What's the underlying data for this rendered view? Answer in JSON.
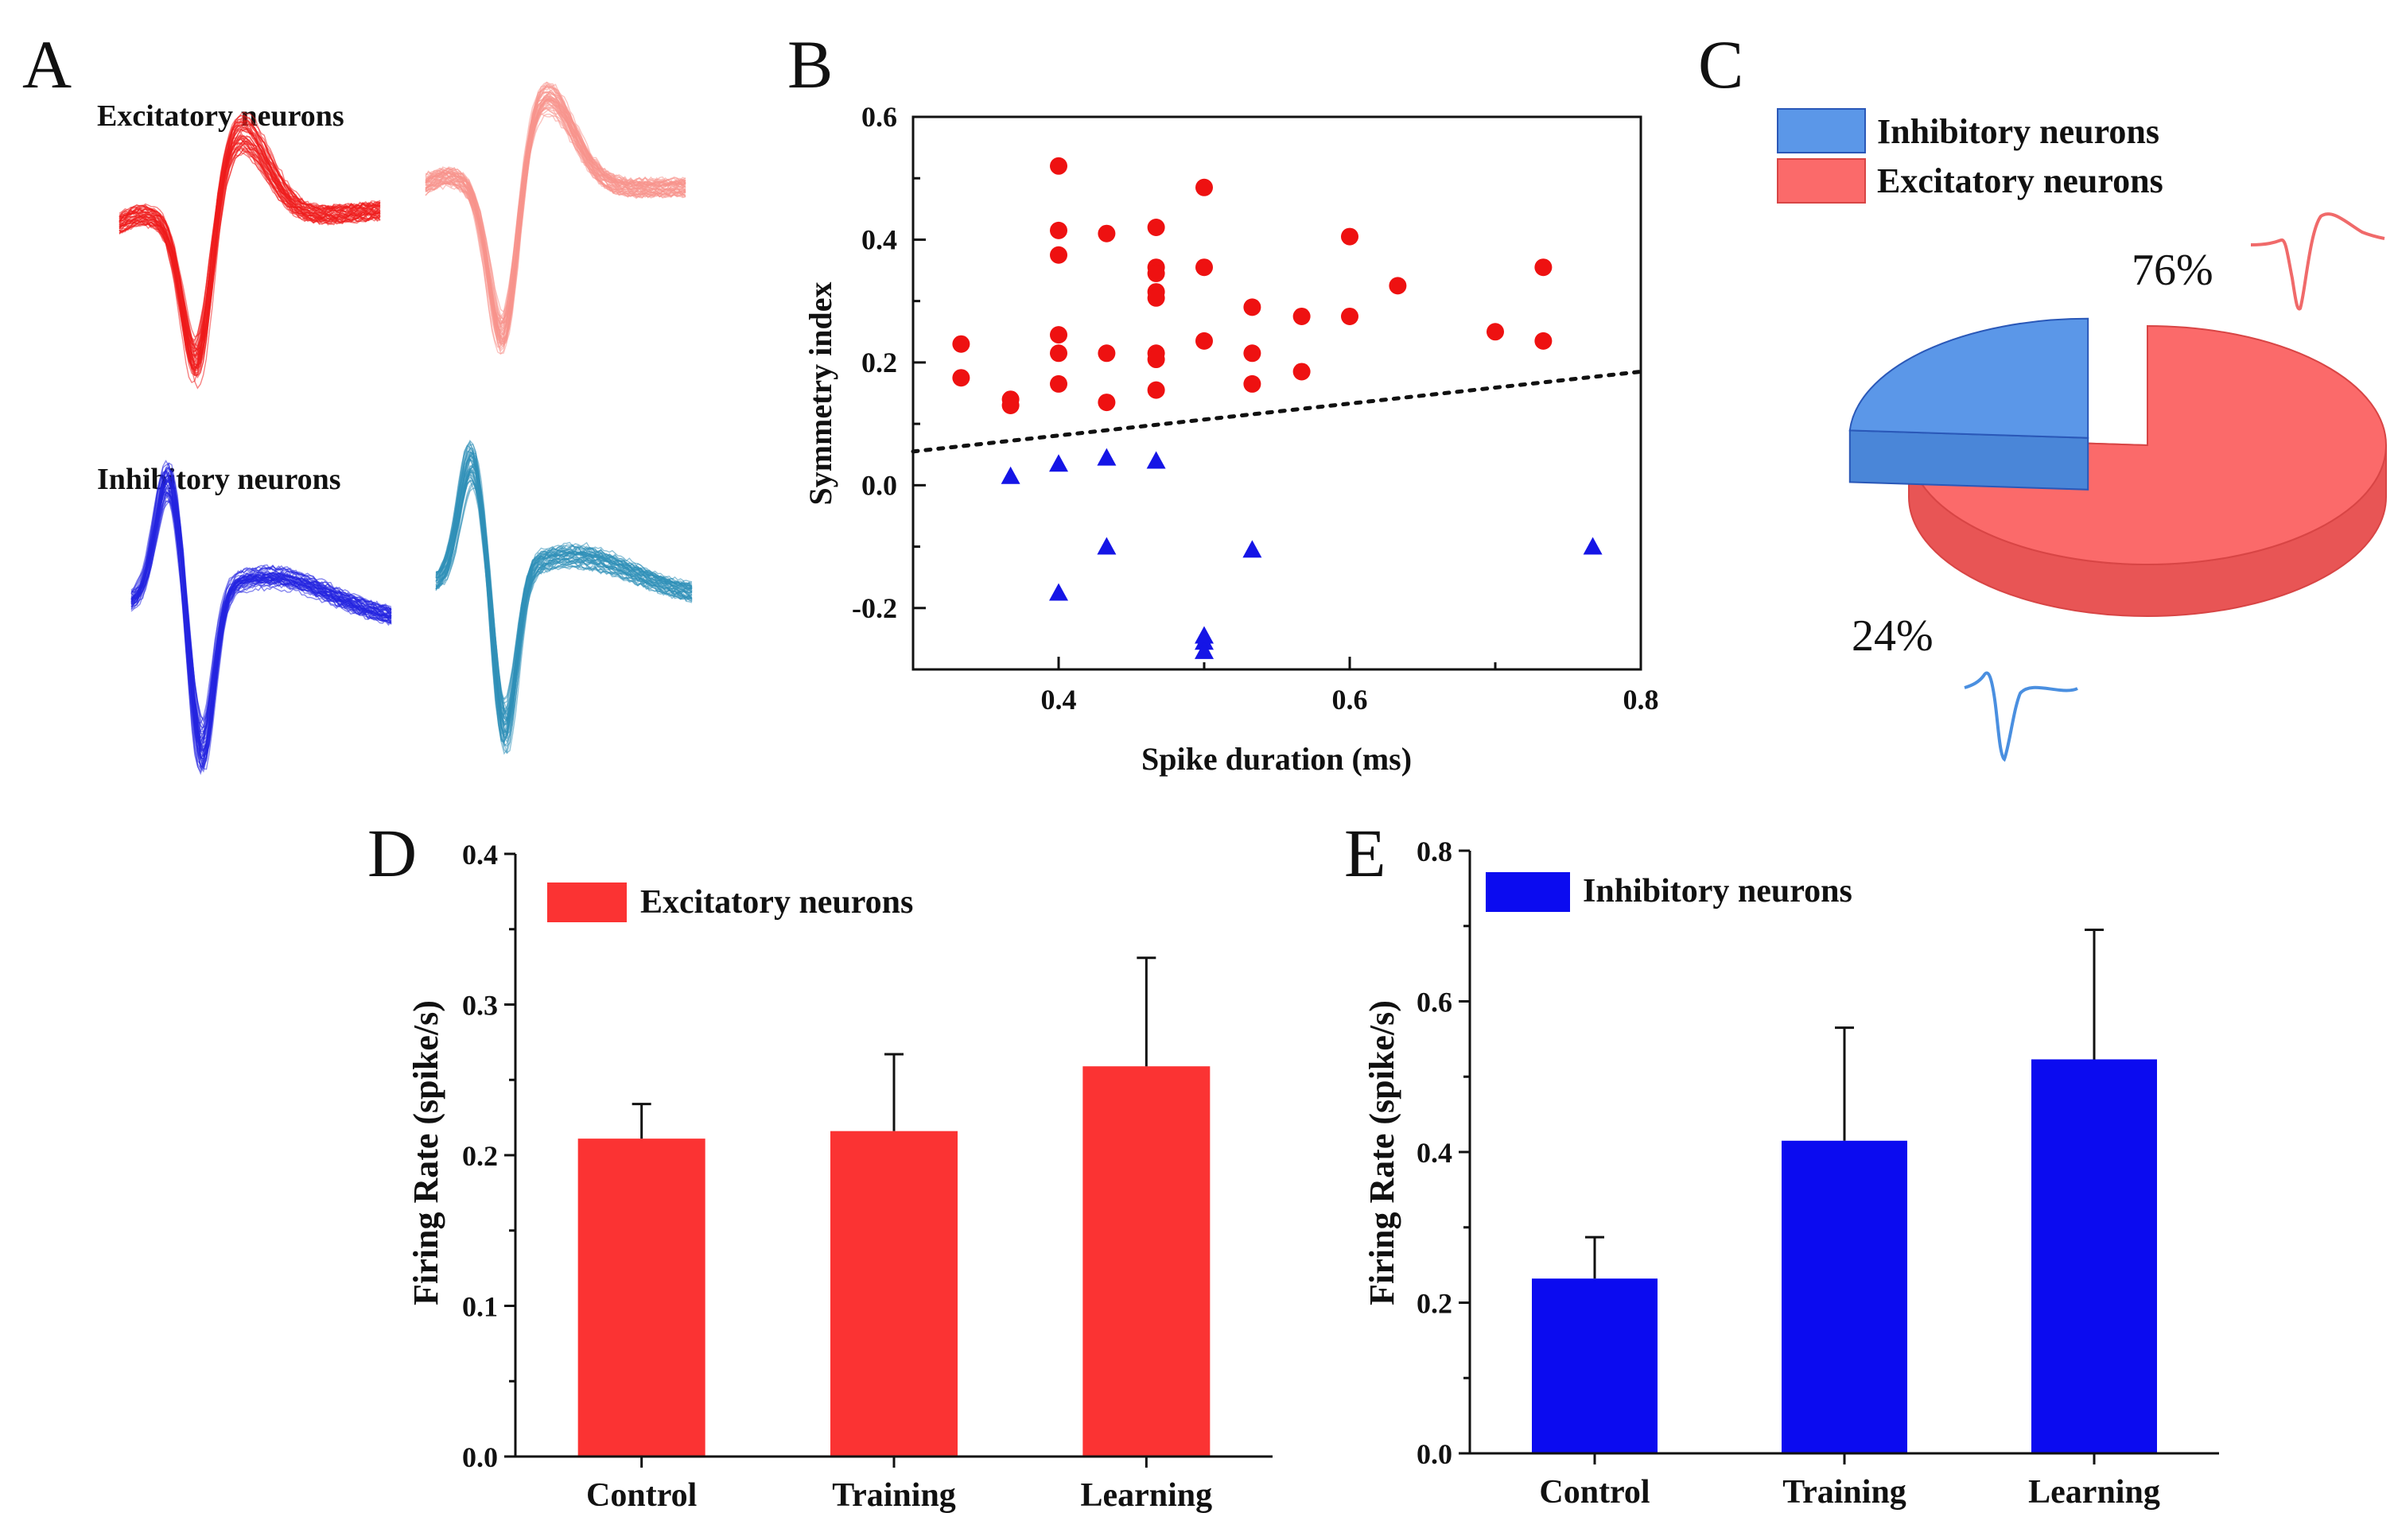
{
  "panels": {
    "A": {
      "letter": "A",
      "excitatory_label": "Excitatory neurons",
      "inhibitory_label": "Inhibitory neurons",
      "colors": {
        "exc1": "#ee1c1c",
        "exc2": "#f7948c",
        "inh1": "#2424e0",
        "inh2": "#2f8fb8"
      }
    },
    "B": {
      "letter": "B"
    },
    "C": {
      "letter": "C"
    },
    "D": {
      "letter": "D"
    },
    "E": {
      "letter": "E"
    }
  },
  "chart_data": [
    {
      "id": "B",
      "type": "scatter",
      "title": "",
      "xlabel": "Spike duration (ms)",
      "ylabel": "Symmetry index",
      "xlim": [
        0.3,
        0.8
      ],
      "ylim": [
        -0.3,
        0.6
      ],
      "xticks": [
        0.4,
        0.6,
        0.8
      ],
      "yticks": [
        -0.2,
        0.0,
        0.2,
        0.4,
        0.6
      ],
      "xtick_labels": [
        "0.4",
        "0.6",
        "0.8"
      ],
      "ytick_labels": [
        "-0.2",
        "0.0",
        "0.2",
        "0.4",
        "0.6"
      ],
      "series": [
        {
          "name": "Excitatory neurons",
          "marker": "circle",
          "color": "#ee1111",
          "points": [
            [
              0.333,
              0.23
            ],
            [
              0.333,
              0.175
            ],
            [
              0.367,
              0.14
            ],
            [
              0.367,
              0.13
            ],
            [
              0.4,
              0.52
            ],
            [
              0.4,
              0.415
            ],
            [
              0.4,
              0.375
            ],
            [
              0.4,
              0.245
            ],
            [
              0.4,
              0.215
            ],
            [
              0.4,
              0.165
            ],
            [
              0.433,
              0.41
            ],
            [
              0.433,
              0.215
            ],
            [
              0.433,
              0.135
            ],
            [
              0.467,
              0.42
            ],
            [
              0.467,
              0.355
            ],
            [
              0.467,
              0.345
            ],
            [
              0.467,
              0.315
            ],
            [
              0.467,
              0.305
            ],
            [
              0.467,
              0.215
            ],
            [
              0.467,
              0.205
            ],
            [
              0.467,
              0.155
            ],
            [
              0.5,
              0.485
            ],
            [
              0.5,
              0.355
            ],
            [
              0.5,
              0.235
            ],
            [
              0.533,
              0.29
            ],
            [
              0.533,
              0.215
            ],
            [
              0.533,
              0.165
            ],
            [
              0.567,
              0.275
            ],
            [
              0.567,
              0.185
            ],
            [
              0.6,
              0.405
            ],
            [
              0.6,
              0.275
            ],
            [
              0.633,
              0.325
            ],
            [
              0.7,
              0.25
            ],
            [
              0.733,
              0.355
            ],
            [
              0.733,
              0.235
            ]
          ]
        },
        {
          "name": "Inhibitory neurons",
          "marker": "triangle",
          "color": "#1515e6",
          "points": [
            [
              0.367,
              0.015
            ],
            [
              0.4,
              0.035
            ],
            [
              0.4,
              -0.175
            ],
            [
              0.433,
              0.045
            ],
            [
              0.433,
              -0.1
            ],
            [
              0.467,
              0.04
            ],
            [
              0.5,
              -0.245
            ],
            [
              0.5,
              -0.255
            ],
            [
              0.5,
              -0.27
            ],
            [
              0.533,
              -0.105
            ],
            [
              0.767,
              -0.1
            ]
          ]
        }
      ],
      "divider_line": {
        "style": "dotted",
        "from": [
          0.3,
          0.055
        ],
        "to": [
          0.8,
          0.185
        ]
      }
    },
    {
      "id": "C",
      "type": "pie",
      "title": "",
      "legend_position": "top-left",
      "slices": [
        {
          "name": "Inhibitory neurons",
          "value": 24,
          "label": "24%",
          "color": "#5b97e8"
        },
        {
          "name": "Excitatory neurons",
          "value": 76,
          "label": "76%",
          "color": "#fb6a6a"
        }
      ]
    },
    {
      "id": "D",
      "type": "bar",
      "title": "",
      "legend": "Excitatory neurons",
      "color": "#fb3333",
      "categories": [
        "Control",
        "Training",
        "Learning"
      ],
      "values": [
        0.211,
        0.216,
        0.259
      ],
      "errors": [
        0.023,
        0.051,
        0.072
      ],
      "xlabel": "",
      "ylabel": "Firing Rate (spike/s)",
      "ylim": [
        0.0,
        0.4
      ],
      "yticks": [
        0.0,
        0.1,
        0.2,
        0.3,
        0.4
      ],
      "ytick_labels": [
        "0.0",
        "0.1",
        "0.2",
        "0.3",
        "0.4"
      ]
    },
    {
      "id": "E",
      "type": "bar",
      "title": "",
      "legend": "Inhibitory neurons",
      "color": "#0b0bf0",
      "categories": [
        "Control",
        "Training",
        "Learning"
      ],
      "values": [
        0.232,
        0.415,
        0.523
      ],
      "errors": [
        0.055,
        0.15,
        0.172
      ],
      "xlabel": "",
      "ylabel": "Firing Rate (spike/s)",
      "ylim": [
        0.0,
        0.8
      ],
      "yticks": [
        0.0,
        0.2,
        0.4,
        0.6,
        0.8
      ],
      "ytick_labels": [
        "0.0",
        "0.2",
        "0.4",
        "0.6",
        "0.8"
      ]
    }
  ]
}
